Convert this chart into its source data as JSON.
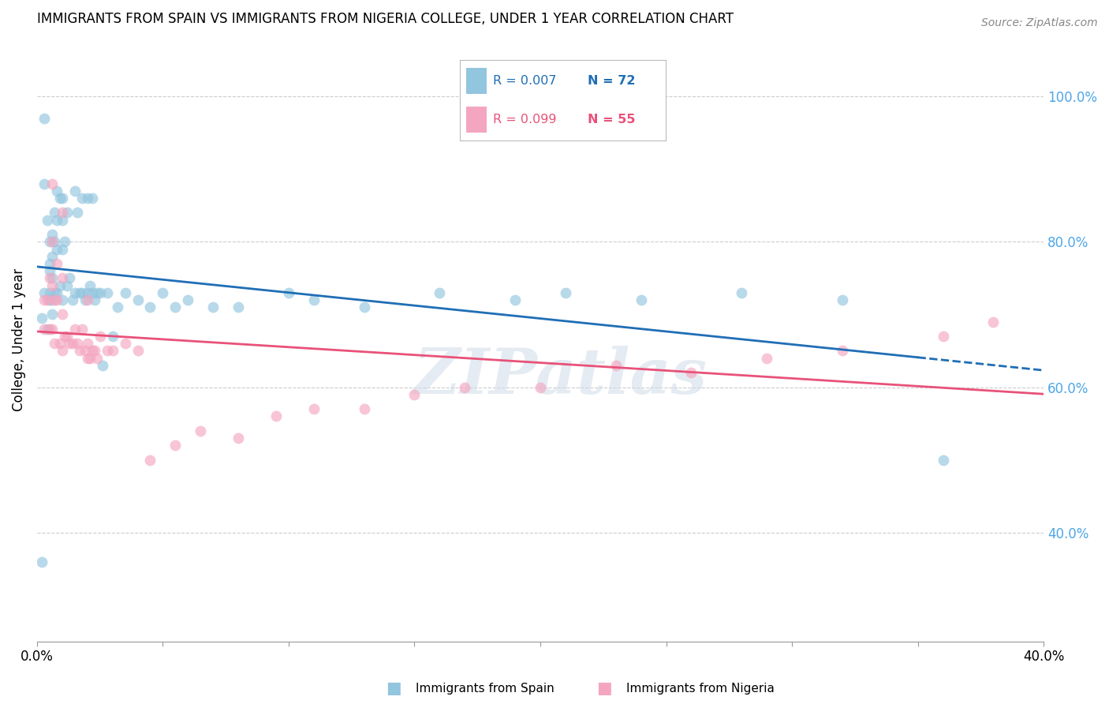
{
  "title": "IMMIGRANTS FROM SPAIN VS IMMIGRANTS FROM NIGERIA COLLEGE, UNDER 1 YEAR CORRELATION CHART",
  "source": "Source: ZipAtlas.com",
  "ylabel": "College, Under 1 year",
  "ylabel_right_ticks": [
    "40.0%",
    "60.0%",
    "80.0%",
    "100.0%"
  ],
  "ylabel_right_vals": [
    0.4,
    0.6,
    0.8,
    1.0
  ],
  "xlim": [
    0.0,
    0.4
  ],
  "ylim": [
    0.25,
    1.08
  ],
  "legend_r_spain": "R = 0.007",
  "legend_n_spain": "N = 72",
  "legend_r_nigeria": "R = 0.099",
  "legend_n_nigeria": "N = 55",
  "color_spain": "#92c5de",
  "color_nigeria": "#f4a6c0",
  "color_spain_line": "#1f6eb5",
  "color_nigeria_line": "#e8527a",
  "color_spain_text": "#1f6eb5",
  "color_nigeria_text": "#e8527a",
  "color_right_axis": "#4da6e8",
  "spain_x": [
    0.002,
    0.003,
    0.003,
    0.003,
    0.004,
    0.004,
    0.005,
    0.005,
    0.005,
    0.005,
    0.005,
    0.006,
    0.006,
    0.006,
    0.006,
    0.006,
    0.007,
    0.007,
    0.007,
    0.008,
    0.008,
    0.008,
    0.008,
    0.009,
    0.009,
    0.01,
    0.01,
    0.01,
    0.01,
    0.011,
    0.012,
    0.012,
    0.013,
    0.014,
    0.015,
    0.015,
    0.016,
    0.017,
    0.018,
    0.018,
    0.019,
    0.02,
    0.02,
    0.021,
    0.022,
    0.022,
    0.023,
    0.024,
    0.025,
    0.026,
    0.028,
    0.03,
    0.032,
    0.035,
    0.04,
    0.045,
    0.05,
    0.055,
    0.06,
    0.07,
    0.08,
    0.1,
    0.11,
    0.13,
    0.16,
    0.19,
    0.21,
    0.24,
    0.28,
    0.32,
    0.36,
    0.002
  ],
  "spain_y": [
    0.695,
    0.97,
    0.88,
    0.73,
    0.83,
    0.68,
    0.76,
    0.73,
    0.8,
    0.77,
    0.72,
    0.81,
    0.78,
    0.75,
    0.72,
    0.7,
    0.84,
    0.8,
    0.73,
    0.87,
    0.83,
    0.79,
    0.73,
    0.86,
    0.74,
    0.86,
    0.83,
    0.79,
    0.72,
    0.8,
    0.84,
    0.74,
    0.75,
    0.72,
    0.87,
    0.73,
    0.84,
    0.73,
    0.86,
    0.73,
    0.72,
    0.86,
    0.73,
    0.74,
    0.86,
    0.73,
    0.72,
    0.73,
    0.73,
    0.63,
    0.73,
    0.67,
    0.71,
    0.73,
    0.72,
    0.71,
    0.73,
    0.71,
    0.72,
    0.71,
    0.71,
    0.73,
    0.72,
    0.71,
    0.73,
    0.72,
    0.73,
    0.72,
    0.73,
    0.72,
    0.5,
    0.36
  ],
  "nigeria_x": [
    0.003,
    0.003,
    0.004,
    0.005,
    0.005,
    0.006,
    0.006,
    0.006,
    0.007,
    0.007,
    0.008,
    0.008,
    0.009,
    0.01,
    0.01,
    0.01,
    0.011,
    0.012,
    0.013,
    0.014,
    0.015,
    0.016,
    0.017,
    0.018,
    0.019,
    0.02,
    0.02,
    0.021,
    0.022,
    0.023,
    0.024,
    0.025,
    0.028,
    0.03,
    0.035,
    0.04,
    0.045,
    0.055,
    0.065,
    0.08,
    0.095,
    0.11,
    0.13,
    0.15,
    0.17,
    0.2,
    0.23,
    0.26,
    0.29,
    0.32,
    0.36,
    0.38,
    0.006,
    0.01,
    0.02
  ],
  "nigeria_y": [
    0.72,
    0.68,
    0.72,
    0.75,
    0.68,
    0.8,
    0.74,
    0.68,
    0.72,
    0.66,
    0.77,
    0.72,
    0.66,
    0.75,
    0.7,
    0.65,
    0.67,
    0.67,
    0.66,
    0.66,
    0.68,
    0.66,
    0.65,
    0.68,
    0.65,
    0.66,
    0.64,
    0.64,
    0.65,
    0.65,
    0.64,
    0.67,
    0.65,
    0.65,
    0.66,
    0.65,
    0.5,
    0.52,
    0.54,
    0.53,
    0.56,
    0.57,
    0.57,
    0.59,
    0.6,
    0.6,
    0.63,
    0.62,
    0.64,
    0.65,
    0.67,
    0.69,
    0.88,
    0.84,
    0.72
  ],
  "background_color": "#ffffff",
  "grid_color": "#cccccc",
  "watermark": "ZIPatlas",
  "spain_line_solid_x_end": 0.35,
  "spain_line_dashed_x_start": 0.35,
  "xticks": [
    0.0,
    0.05,
    0.1,
    0.15,
    0.2,
    0.25,
    0.3,
    0.35,
    0.4
  ],
  "ytick_grid_vals": [
    0.4,
    0.6,
    0.8,
    1.0
  ]
}
